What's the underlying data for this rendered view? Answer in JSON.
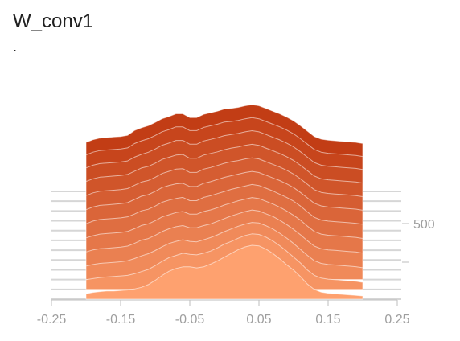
{
  "header": {
    "title": "W_conv1",
    "subtitle": "."
  },
  "colors": {
    "base": "#fea16f",
    "deep": "#c23d15",
    "axis": "#bdbdbd",
    "label": "#9e9e9e"
  },
  "chart_data": {
    "type": "area",
    "style": "histogram-offset",
    "title": "W_conv1",
    "subtitle": ".",
    "xlabel": "",
    "ylabel": "",
    "xlim": [
      -0.25,
      0.25
    ],
    "x_ticks": [
      -0.25,
      -0.15,
      -0.05,
      0.05,
      0.15,
      0.25
    ],
    "x_tick_labels": [
      "-0.25",
      "-0.15",
      "-0.05",
      "0.05",
      "0.15",
      "0.25"
    ],
    "x": [
      -0.2,
      -0.19,
      -0.18,
      -0.17,
      -0.16,
      -0.15,
      -0.14,
      -0.13,
      -0.12,
      -0.11,
      -0.1,
      -0.09,
      -0.08,
      -0.07,
      -0.06,
      -0.05,
      -0.04,
      -0.03,
      -0.02,
      -0.01,
      0.0,
      0.01,
      0.02,
      0.03,
      0.04,
      0.05,
      0.06,
      0.07,
      0.08,
      0.09,
      0.1,
      0.11,
      0.12,
      0.13,
      0.14,
      0.15,
      0.16,
      0.17,
      0.18,
      0.19,
      0.2
    ],
    "step_axis": {
      "tick_labels": [
        "500"
      ]
    },
    "series": [
      {
        "values": [
          20,
          25,
          28,
          30,
          30,
          32,
          34,
          38,
          44,
          54,
          70,
          88,
          104,
          114,
          120,
          120,
          116,
          120,
          130,
          142,
          156,
          170,
          184,
          194,
          200,
          198,
          186,
          170,
          150,
          128,
          108,
          84,
          56,
          36,
          26,
          22,
          20,
          18,
          16,
          14,
          12
        ]
      },
      {
        "values": [
          36,
          40,
          44,
          46,
          48,
          50,
          52,
          58,
          66,
          74,
          88,
          104,
          118,
          126,
          134,
          130,
          128,
          134,
          142,
          154,
          168,
          178,
          190,
          200,
          206,
          204,
          194,
          180,
          162,
          142,
          120,
          98,
          72,
          52,
          42,
          38,
          36,
          34,
          32,
          30,
          26
        ]
      },
      {
        "values": [
          50,
          56,
          60,
          62,
          64,
          66,
          70,
          78,
          88,
          96,
          108,
          122,
          134,
          142,
          148,
          142,
          140,
          148,
          156,
          166,
          178,
          188,
          198,
          206,
          212,
          210,
          200,
          188,
          172,
          154,
          134,
          112,
          90,
          70,
          60,
          56,
          54,
          52,
          50,
          48,
          44
        ]
      },
      {
        "values": [
          66,
          74,
          78,
          80,
          82,
          84,
          88,
          98,
          110,
          116,
          128,
          142,
          152,
          160,
          164,
          156,
          156,
          164,
          170,
          180,
          190,
          200,
          208,
          216,
          222,
          218,
          208,
          198,
          184,
          168,
          150,
          130,
          108,
          88,
          78,
          74,
          72,
          70,
          68,
          66,
          62
        ]
      },
      {
        "values": [
          82,
          90,
          96,
          98,
          100,
          102,
          106,
          116,
          128,
          134,
          146,
          160,
          168,
          176,
          180,
          170,
          170,
          180,
          186,
          194,
          204,
          212,
          220,
          226,
          232,
          228,
          218,
          208,
          196,
          182,
          166,
          148,
          126,
          106,
          96,
          92,
          90,
          88,
          86,
          84,
          80
        ]
      },
      {
        "values": [
          98,
          108,
          114,
          116,
          118,
          120,
          124,
          134,
          146,
          152,
          164,
          178,
          186,
          192,
          196,
          184,
          184,
          196,
          202,
          210,
          218,
          226,
          232,
          238,
          244,
          240,
          230,
          220,
          208,
          196,
          182,
          164,
          142,
          122,
          112,
          108,
          106,
          104,
          102,
          100,
          96
        ]
      },
      {
        "values": [
          114,
          124,
          130,
          132,
          134,
          136,
          140,
          152,
          164,
          170,
          182,
          196,
          204,
          210,
          212,
          200,
          200,
          212,
          218,
          226,
          234,
          240,
          246,
          252,
          256,
          252,
          242,
          232,
          222,
          210,
          196,
          178,
          158,
          138,
          128,
          124,
          122,
          120,
          118,
          116,
          112
        ]
      },
      {
        "values": [
          130,
          140,
          146,
          148,
          150,
          152,
          156,
          168,
          180,
          186,
          198,
          212,
          220,
          228,
          230,
          216,
          216,
          228,
          234,
          242,
          250,
          256,
          260,
          266,
          270,
          266,
          256,
          246,
          236,
          224,
          210,
          192,
          172,
          152,
          142,
          138,
          136,
          134,
          132,
          130,
          126
        ]
      },
      {
        "values": [
          146,
          156,
          162,
          164,
          166,
          168,
          172,
          184,
          196,
          202,
          214,
          228,
          236,
          244,
          246,
          232,
          232,
          244,
          250,
          256,
          264,
          270,
          274,
          280,
          284,
          280,
          270,
          260,
          250,
          238,
          224,
          206,
          186,
          166,
          156,
          152,
          150,
          148,
          146,
          144,
          140
        ]
      },
      {
        "values": [
          160,
          170,
          176,
          178,
          180,
          182,
          186,
          200,
          210,
          218,
          230,
          244,
          252,
          262,
          262,
          248,
          248,
          260,
          266,
          272,
          280,
          284,
          288,
          294,
          298,
          294,
          284,
          274,
          264,
          252,
          238,
          220,
          200,
          180,
          170,
          166,
          164,
          162,
          160,
          158,
          154
        ]
      },
      {
        "values": [
          172,
          182,
          188,
          190,
          192,
          194,
          198,
          214,
          224,
          232,
          244,
          258,
          266,
          276,
          276,
          262,
          262,
          274,
          280,
          286,
          294,
          296,
          300,
          306,
          310,
          306,
          296,
          286,
          276,
          264,
          250,
          232,
          212,
          192,
          182,
          178,
          176,
          174,
          172,
          170,
          166
        ]
      },
      {
        "values": [
          182,
          192,
          198,
          200,
          202,
          204,
          208,
          226,
          236,
          244,
          256,
          270,
          278,
          288,
          288,
          274,
          274,
          286,
          292,
          298,
          306,
          308,
          312,
          318,
          322,
          318,
          308,
          298,
          288,
          276,
          262,
          244,
          224,
          204,
          194,
          190,
          188,
          186,
          184,
          182,
          178
        ]
      }
    ]
  }
}
